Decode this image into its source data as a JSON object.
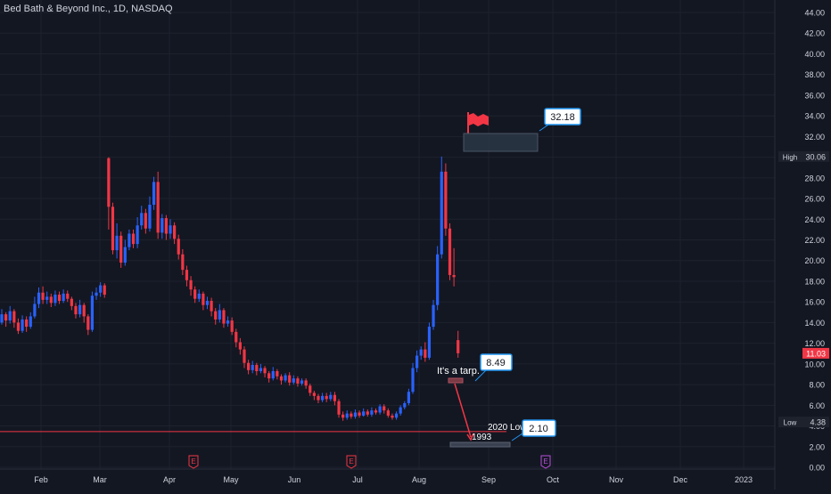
{
  "title": "Bed Bath & Beyond Inc., 1D, NASDAQ",
  "colors": {
    "background": "#131722",
    "up": "#2962ff",
    "down": "#f23645",
    "text": "#d1d4dc",
    "callout": "#2196f3"
  },
  "chart_data": {
    "type": "candlestick",
    "x_tick_labels": [
      "Feb",
      "Mar",
      "Apr",
      "May",
      "Jun",
      "Jul",
      "Aug",
      "Sep",
      "Oct",
      "Nov",
      "Dec",
      "2023"
    ],
    "y_tick_labels": [
      "44.00",
      "42.00",
      "40.00",
      "38.00",
      "36.00",
      "34.00",
      "32.00",
      "30.00",
      "28.00",
      "26.00",
      "24.00",
      "22.00",
      "20.00",
      "18.00",
      "16.00",
      "14.00",
      "12.00",
      "10.00",
      "8.00",
      "6.00",
      "4.00",
      "2.00",
      "0.00"
    ],
    "ylim": [
      0,
      44
    ],
    "price_tags": [
      {
        "label": "High",
        "value": "30.06",
        "price": 30.06,
        "style": "neutral"
      },
      {
        "label": "",
        "value": "11.03",
        "price": 11.03,
        "style": "down"
      },
      {
        "label": "Low",
        "value": "4.38",
        "price": 4.38,
        "style": "neutral"
      }
    ],
    "horizontal_line": {
      "price": 3.45
    },
    "annotations": [
      {
        "text": "32.18",
        "kind": "callout"
      },
      {
        "text": "8.49",
        "kind": "callout"
      },
      {
        "text": "2.10",
        "kind": "callout"
      },
      {
        "text": "It's a tarp.",
        "kind": "label"
      },
      {
        "text": "2020 Low",
        "kind": "label"
      },
      {
        "text": "1993",
        "kind": "label"
      }
    ],
    "earnings_markers": [
      "E",
      "E",
      "E"
    ],
    "candles": [
      [
        0,
        14.0,
        14.8,
        15.3,
        13.8
      ],
      [
        1,
        14.8,
        14.2,
        15.0,
        13.6
      ],
      [
        2,
        14.2,
        15.1,
        15.6,
        13.9
      ],
      [
        3,
        15.1,
        14.0,
        15.3,
        13.5
      ],
      [
        4,
        14.0,
        13.2,
        14.4,
        12.9
      ],
      [
        5,
        13.2,
        14.3,
        14.7,
        13.0
      ],
      [
        6,
        14.3,
        13.6,
        14.6,
        13.1
      ],
      [
        7,
        13.6,
        14.6,
        15.0,
        13.4
      ],
      [
        8,
        14.6,
        15.8,
        16.5,
        14.4
      ],
      [
        9,
        15.8,
        16.9,
        17.4,
        15.4
      ],
      [
        10,
        16.9,
        16.2,
        17.5,
        15.8
      ],
      [
        11,
        16.2,
        16.5,
        17.0,
        15.8
      ],
      [
        12,
        16.5,
        15.9,
        16.8,
        15.5
      ],
      [
        13,
        15.9,
        16.7,
        17.1,
        15.6
      ],
      [
        14,
        16.7,
        16.1,
        17.0,
        15.8
      ],
      [
        15,
        16.1,
        16.8,
        17.2,
        15.9
      ],
      [
        16,
        16.8,
        16.3,
        17.1,
        16.0
      ],
      [
        17,
        16.3,
        15.6,
        16.5,
        15.2
      ],
      [
        18,
        15.6,
        14.8,
        15.9,
        14.4
      ],
      [
        19,
        14.8,
        15.7,
        16.2,
        14.5
      ],
      [
        20,
        15.7,
        14.6,
        15.9,
        14.0
      ],
      [
        21,
        14.6,
        13.3,
        14.8,
        12.8
      ],
      [
        22,
        13.3,
        16.6,
        17.0,
        13.1
      ],
      [
        23,
        16.6,
        16.9,
        17.4,
        16.2
      ],
      [
        24,
        16.9,
        17.6,
        17.9,
        16.5
      ],
      [
        25,
        17.6,
        16.7,
        17.8,
        16.4
      ],
      [
        26,
        29.9,
        25.2,
        30.0,
        23.0
      ],
      [
        27,
        25.2,
        21.0,
        25.6,
        20.6
      ],
      [
        28,
        21.0,
        22.4,
        23.6,
        20.2
      ],
      [
        29,
        22.4,
        19.8,
        22.8,
        19.3
      ],
      [
        30,
        19.8,
        21.3,
        22.0,
        19.5
      ],
      [
        31,
        21.3,
        22.6,
        23.0,
        21.0
      ],
      [
        32,
        22.6,
        21.6,
        23.0,
        21.2
      ],
      [
        33,
        21.6,
        23.4,
        24.2,
        21.2
      ],
      [
        34,
        23.4,
        24.6,
        25.3,
        23.0
      ],
      [
        35,
        24.6,
        23.1,
        25.0,
        22.6
      ],
      [
        36,
        23.1,
        25.4,
        26.2,
        22.8
      ],
      [
        37,
        25.4,
        27.6,
        28.1,
        24.9
      ],
      [
        38,
        27.6,
        22.7,
        28.6,
        22.1
      ],
      [
        39,
        22.7,
        24.1,
        24.5,
        22.1
      ],
      [
        40,
        24.1,
        22.6,
        24.4,
        22.0
      ],
      [
        41,
        22.6,
        23.4,
        24.0,
        22.1
      ],
      [
        42,
        23.4,
        22.1,
        23.7,
        21.6
      ],
      [
        43,
        22.1,
        20.6,
        22.5,
        20.1
      ],
      [
        44,
        20.6,
        19.1,
        21.1,
        18.6
      ],
      [
        45,
        19.1,
        18.1,
        19.5,
        17.5
      ],
      [
        46,
        18.1,
        17.2,
        18.5,
        16.6
      ],
      [
        47,
        17.2,
        16.3,
        17.5,
        15.9
      ],
      [
        48,
        16.3,
        16.8,
        17.2,
        16.0
      ],
      [
        49,
        16.8,
        15.7,
        17.0,
        15.2
      ],
      [
        50,
        15.7,
        16.1,
        16.5,
        15.3
      ],
      [
        51,
        16.1,
        15.1,
        16.4,
        14.6
      ],
      [
        52,
        15.1,
        14.3,
        15.4,
        13.8
      ],
      [
        53,
        14.3,
        15.2,
        15.8,
        14.0
      ],
      [
        54,
        15.2,
        13.9,
        15.4,
        13.5
      ],
      [
        55,
        13.9,
        14.2,
        14.6,
        13.6
      ],
      [
        56,
        14.2,
        13.1,
        14.5,
        12.8
      ],
      [
        57,
        13.1,
        12.1,
        13.4,
        11.6
      ],
      [
        58,
        12.1,
        11.4,
        12.5,
        10.9
      ],
      [
        59,
        11.4,
        10.1,
        11.7,
        9.6
      ],
      [
        60,
        10.1,
        9.4,
        10.4,
        9.0
      ],
      [
        61,
        9.4,
        9.9,
        10.3,
        9.1
      ],
      [
        62,
        9.9,
        9.3,
        10.1,
        8.9
      ],
      [
        63,
        9.3,
        9.6,
        10.0,
        9.1
      ],
      [
        64,
        9.6,
        9.1,
        9.8,
        8.7
      ],
      [
        65,
        9.1,
        8.6,
        9.3,
        8.2
      ],
      [
        66,
        8.6,
        9.3,
        9.7,
        8.4
      ],
      [
        67,
        9.3,
        8.8,
        9.5,
        8.5
      ],
      [
        68,
        8.8,
        8.4,
        9.0,
        8.0
      ],
      [
        69,
        8.4,
        8.9,
        9.1,
        8.2
      ],
      [
        70,
        8.9,
        8.2,
        9.2,
        7.9
      ],
      [
        71,
        8.2,
        8.6,
        8.9,
        8.0
      ],
      [
        72,
        8.6,
        8.1,
        8.8,
        7.8
      ],
      [
        73,
        8.1,
        8.4,
        8.6,
        7.9
      ],
      [
        74,
        8.4,
        7.9,
        8.6,
        7.6
      ],
      [
        75,
        7.9,
        7.2,
        8.1,
        6.9
      ],
      [
        76,
        7.2,
        6.9,
        7.4,
        6.5
      ],
      [
        77,
        6.9,
        6.5,
        7.1,
        6.2
      ],
      [
        78,
        6.5,
        6.9,
        7.2,
        6.3
      ],
      [
        79,
        6.9,
        6.6,
        7.2,
        6.3
      ],
      [
        80,
        6.6,
        7.0,
        7.3,
        6.4
      ],
      [
        81,
        7.0,
        6.4,
        7.3,
        6.0
      ],
      [
        82,
        6.4,
        5.1,
        6.6,
        4.8
      ],
      [
        83,
        5.1,
        4.8,
        5.4,
        4.5
      ],
      [
        84,
        4.8,
        5.2,
        5.5,
        4.6
      ],
      [
        85,
        5.2,
        4.9,
        5.4,
        4.7
      ],
      [
        86,
        4.9,
        5.3,
        5.6,
        4.7
      ],
      [
        87,
        5.3,
        5.0,
        5.5,
        4.8
      ],
      [
        88,
        5.0,
        5.4,
        5.7,
        4.9
      ],
      [
        89,
        5.4,
        5.1,
        5.6,
        4.9
      ],
      [
        90,
        5.1,
        5.5,
        5.8,
        4.9
      ],
      [
        91,
        5.5,
        5.3,
        5.7,
        5.1
      ],
      [
        92,
        5.3,
        5.9,
        6.1,
        5.1
      ],
      [
        93,
        5.9,
        5.5,
        6.1,
        5.2
      ],
      [
        94,
        5.5,
        5.0,
        5.7,
        4.8
      ],
      [
        95,
        5.0,
        4.8,
        5.2,
        4.6
      ],
      [
        96,
        4.8,
        5.2,
        5.4,
        4.6
      ],
      [
        97,
        5.2,
        5.8,
        6.0,
        5.0
      ],
      [
        98,
        5.8,
        6.2,
        6.4,
        5.6
      ],
      [
        99,
        6.2,
        7.3,
        7.6,
        6.0
      ],
      [
        100,
        7.3,
        9.6,
        10.1,
        7.1
      ],
      [
        101,
        9.6,
        10.8,
        11.3,
        9.2
      ],
      [
        102,
        10.8,
        11.4,
        11.7,
        10.4
      ],
      [
        103,
        11.4,
        10.6,
        12.1,
        10.2
      ],
      [
        104,
        10.6,
        13.6,
        14.0,
        10.4
      ],
      [
        105,
        13.6,
        15.7,
        16.2,
        13.3
      ],
      [
        106,
        15.7,
        20.6,
        21.4,
        15.2
      ],
      [
        107,
        20.6,
        28.6,
        30.06,
        20.2
      ],
      [
        108,
        28.6,
        23.1,
        29.4,
        22.4
      ],
      [
        109,
        23.1,
        18.6,
        23.6,
        18.1
      ],
      [
        110,
        18.6,
        18.4,
        21.2,
        17.5
      ],
      [
        111,
        12.3,
        11.03,
        13.2,
        10.6
      ]
    ]
  }
}
